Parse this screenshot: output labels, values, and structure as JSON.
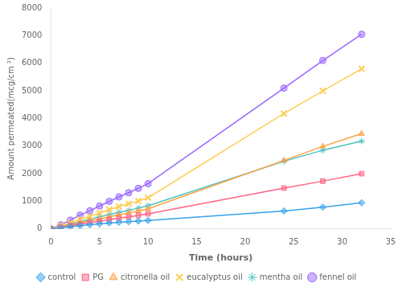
{
  "chart_data": {
    "type": "line",
    "xlabel": "Time (hours)",
    "ylabel": "Amount permeated(mcg/cm ²)",
    "x": [
      0,
      1,
      2,
      3,
      4,
      5,
      6,
      7,
      8,
      9,
      10,
      24,
      28,
      32
    ],
    "series": [
      {
        "name": "control",
        "marker": "diamond",
        "values": [
          0,
          40,
          80,
          120,
          155,
          185,
          215,
          240,
          265,
          285,
          310,
          650,
          790,
          950
        ]
      },
      {
        "name": "PG",
        "marker": "square",
        "values": [
          0,
          60,
          120,
          175,
          230,
          280,
          335,
          385,
          435,
          490,
          550,
          1480,
          1730,
          2000
        ]
      },
      {
        "name": "citronella oil",
        "marker": "triangle",
        "values": [
          0,
          70,
          145,
          220,
          290,
          360,
          435,
          510,
          580,
          650,
          730,
          2480,
          2990,
          3450
        ]
      },
      {
        "name": "eucalyptus oil",
        "marker": "x",
        "values": [
          0,
          110,
          225,
          345,
          460,
          580,
          700,
          810,
          910,
          1010,
          1130,
          4180,
          5000,
          5800
        ]
      },
      {
        "name": "mentha oil",
        "marker": "star",
        "values": [
          0,
          85,
          175,
          265,
          350,
          435,
          520,
          600,
          675,
          755,
          840,
          2450,
          2850,
          3180
        ]
      },
      {
        "name": "fennel oil",
        "marker": "circle",
        "values": [
          0,
          150,
          320,
          500,
          660,
          830,
          1000,
          1160,
          1310,
          1470,
          1640,
          5100,
          6100,
          7050
        ]
      }
    ],
    "xlim": [
      0,
      35
    ],
    "ylim": [
      0,
      8000
    ],
    "xticks": [
      0,
      5,
      10,
      15,
      20,
      25,
      30,
      35
    ],
    "yticks": [
      0,
      1000,
      2000,
      3000,
      4000,
      5000,
      6000,
      7000,
      8000
    ],
    "grid": false,
    "legend": "bottom"
  }
}
